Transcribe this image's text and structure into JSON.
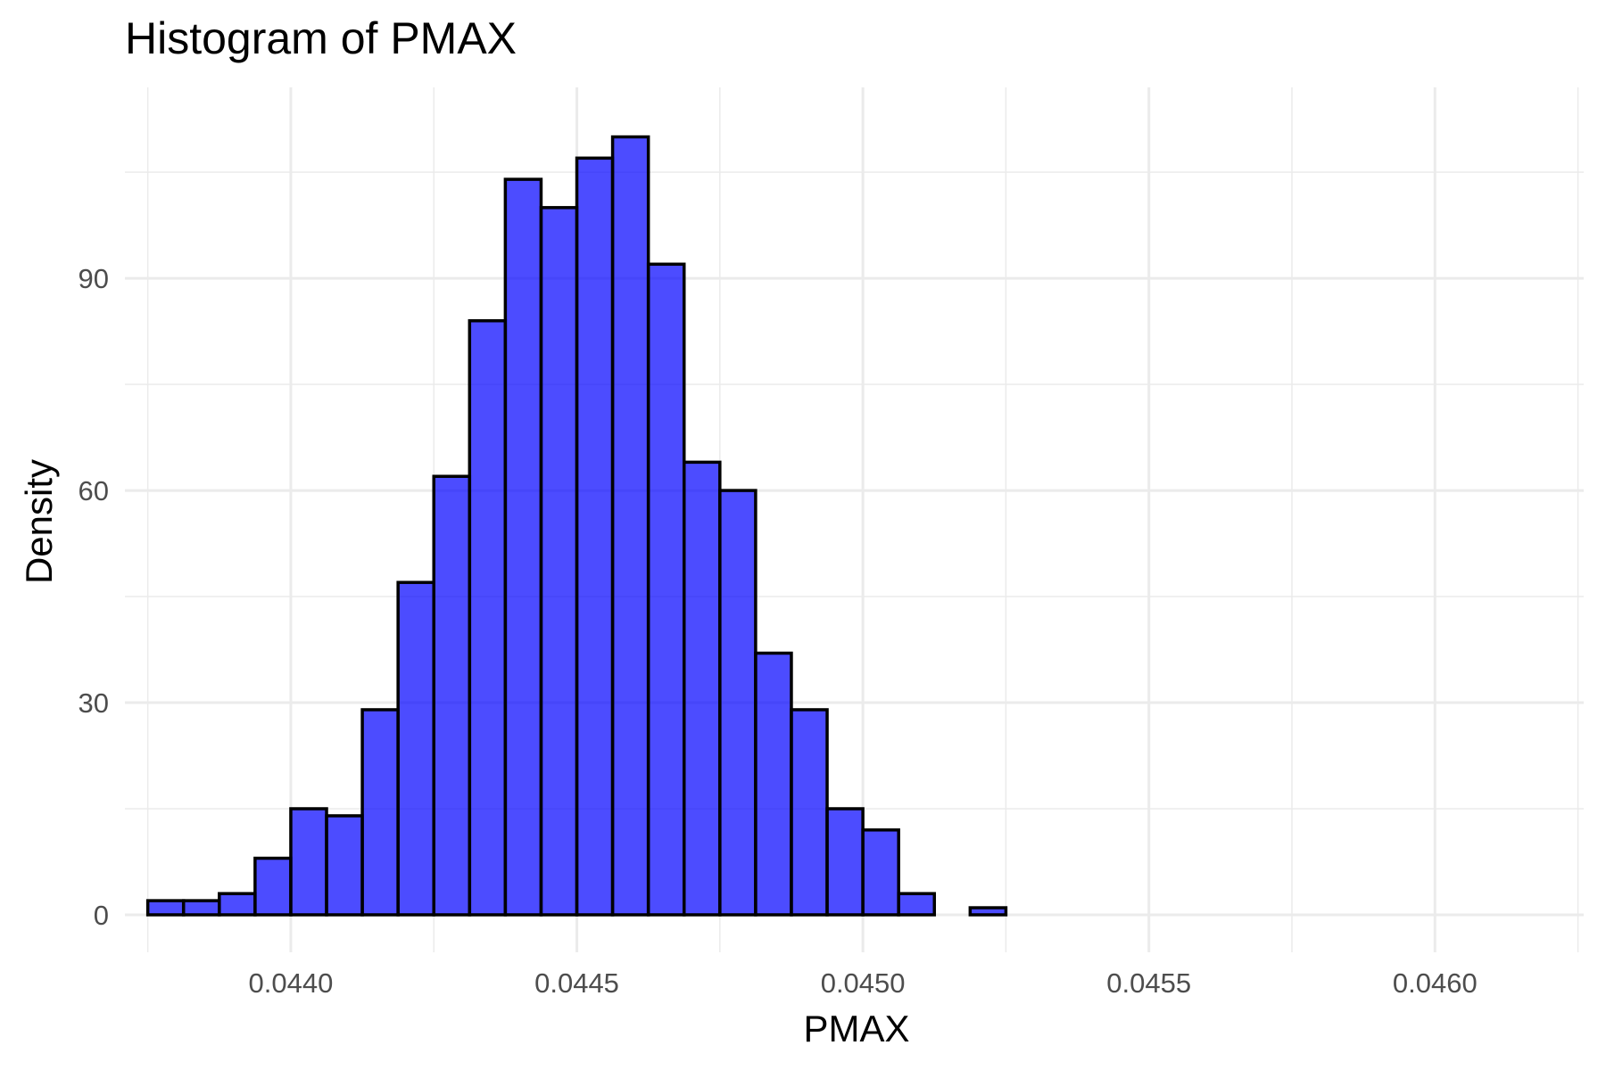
{
  "chart_data": {
    "type": "bar",
    "title": "Histogram of PMAX",
    "xlabel": "PMAX",
    "ylabel": "Density",
    "bin_width": 6.25e-05,
    "bin_start": 0.04375,
    "values": [
      2,
      2,
      3,
      8,
      15,
      14,
      29,
      47,
      62,
      84,
      104,
      100,
      107,
      110,
      92,
      64,
      60,
      37,
      29,
      15,
      12,
      3,
      0,
      1
    ],
    "xlim": [
      0.04371,
      0.04626
    ],
    "ylim": [
      -5.3,
      117
    ],
    "x_ticks": [
      0.044,
      0.0445,
      0.045,
      0.0455,
      0.046
    ],
    "x_tick_labels": [
      "0.0440",
      "0.0445",
      "0.0450",
      "0.0455",
      "0.0460"
    ],
    "y_ticks": [
      0,
      30,
      60,
      90
    ],
    "y_tick_labels": [
      "0",
      "30",
      "60",
      "90"
    ],
    "grid": true,
    "bar_fill": "#0000ff",
    "bar_fill_opacity": 0.7,
    "bar_stroke": "#000000",
    "grid_color": "#ebebeb"
  }
}
